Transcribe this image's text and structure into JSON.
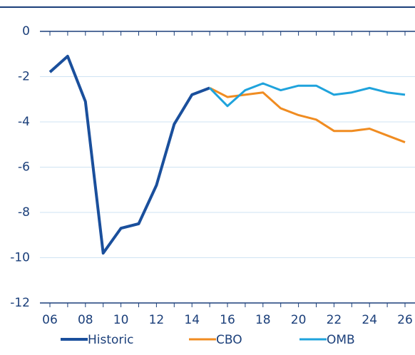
{
  "chart_data": {
    "type": "line",
    "x": [
      6,
      7,
      8,
      9,
      10,
      11,
      12,
      13,
      14,
      15,
      16,
      17,
      18,
      19,
      20,
      21,
      22,
      23,
      24,
      25,
      26
    ],
    "series": [
      {
        "name": "Historic",
        "color": "#1a4f9c",
        "values": [
          -1.8,
          -1.1,
          -3.1,
          -9.8,
          -8.7,
          -8.5,
          -6.8,
          -4.1,
          -2.8,
          -2.5,
          null,
          null,
          null,
          null,
          null,
          null,
          null,
          null,
          null,
          null,
          null
        ]
      },
      {
        "name": "CBO",
        "color": "#f08c21",
        "values": [
          null,
          null,
          null,
          null,
          null,
          null,
          null,
          null,
          null,
          -2.5,
          -2.9,
          -2.8,
          -2.7,
          -3.4,
          -3.7,
          -3.9,
          -4.4,
          -4.4,
          -4.3,
          -4.6,
          -4.9
        ]
      },
      {
        "name": "OMB",
        "color": "#1fa3dc",
        "values": [
          null,
          null,
          null,
          null,
          null,
          null,
          null,
          null,
          null,
          -2.5,
          -3.3,
          -2.6,
          -2.3,
          -2.6,
          -2.4,
          -2.4,
          -2.8,
          -2.7,
          -2.5,
          -2.7,
          -2.8
        ]
      }
    ],
    "xlim": [
      6,
      26
    ],
    "xticks": [
      {
        "value": 6,
        "label": "06"
      },
      {
        "value": 8,
        "label": "08"
      },
      10,
      12,
      14,
      16,
      18,
      20,
      22,
      24,
      26
    ],
    "ylim": [
      -12,
      0
    ],
    "yticks": [
      0,
      -2,
      -4,
      -6,
      -8,
      -10,
      -12
    ],
    "grid": true
  }
}
